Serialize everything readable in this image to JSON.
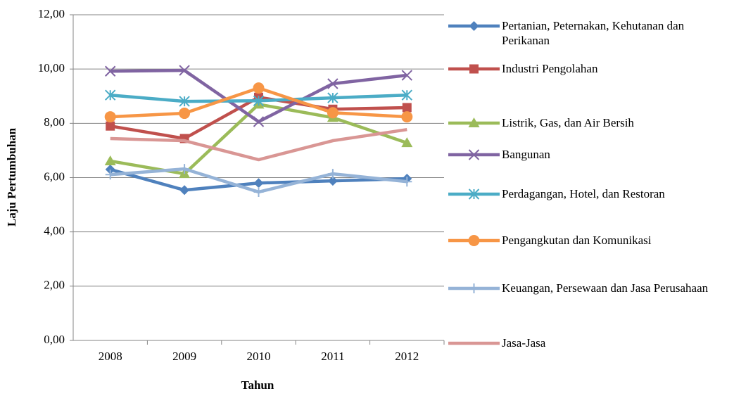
{
  "chart_data": {
    "type": "line",
    "x_label": "Tahun",
    "y_label": "Laju Pertumbuhan",
    "categories": [
      "2008",
      "2009",
      "2010",
      "2011",
      "2012"
    ],
    "ylim": [
      0,
      12
    ],
    "yticks": [
      {
        "value": 0,
        "label": "0,00"
      },
      {
        "value": 2,
        "label": "2,00"
      },
      {
        "value": 4,
        "label": "4,00"
      },
      {
        "value": 6,
        "label": "6,00"
      },
      {
        "value": 8,
        "label": "8,00"
      },
      {
        "value": 10,
        "label": "10,00"
      },
      {
        "value": 12,
        "label": "12,00"
      }
    ],
    "grid": true,
    "legend": "right",
    "series": [
      {
        "name": "Pertanian, Peternakan, Kehutanan dan Perikanan",
        "color": "#4F81BD",
        "marker": "diamond",
        "values": [
          6.3,
          5.54,
          5.8,
          5.88,
          5.96
        ]
      },
      {
        "name": "Industri Pengolahan",
        "color": "#C0504D",
        "marker": "square",
        "values": [
          7.9,
          7.44,
          8.96,
          8.52,
          8.58
        ]
      },
      {
        "name": "Listrik, Gas, dan Air Bersih",
        "color": "#9BBB59",
        "marker": "triangle",
        "values": [
          6.61,
          6.14,
          8.7,
          8.21,
          7.28
        ]
      },
      {
        "name": "Bangunan",
        "color": "#8064A2",
        "marker": "x",
        "values": [
          9.92,
          9.95,
          8.06,
          9.46,
          9.77
        ]
      },
      {
        "name": "Perdagangan, Hotel, dan Restoran",
        "color": "#4BACC6",
        "marker": "asterisk",
        "values": [
          9.04,
          8.81,
          8.83,
          8.94,
          9.04
        ]
      },
      {
        "name": "Pengangkutan dan Komunikasi",
        "color": "#F79646",
        "marker": "circle",
        "values": [
          8.24,
          8.37,
          9.3,
          8.39,
          8.24
        ]
      },
      {
        "name": "Keuangan, Persewaan dan Jasa Perusahaan",
        "color": "#95B3D7",
        "marker": "plus",
        "values": [
          6.11,
          6.32,
          5.47,
          6.14,
          5.85
        ]
      },
      {
        "name": "Jasa-Jasa",
        "color": "#D99694",
        "marker": "none",
        "values": [
          7.44,
          7.36,
          6.66,
          7.36,
          7.77
        ]
      }
    ]
  }
}
